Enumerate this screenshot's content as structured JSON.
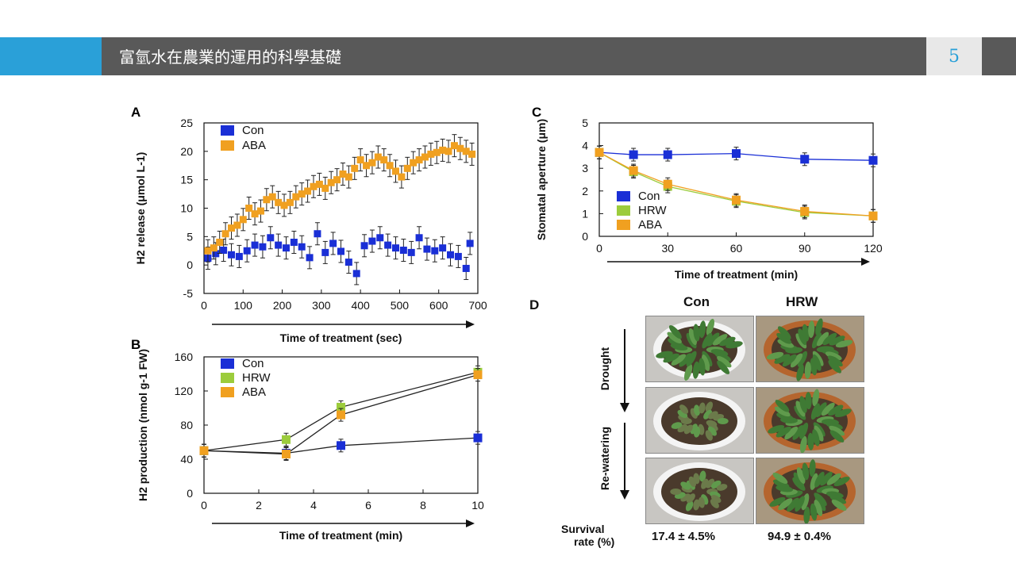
{
  "slide": {
    "title": "富氫水在農業的運用的科學基礎",
    "page_number": "5"
  },
  "chart_data": [
    {
      "panel": "A",
      "type": "scatter",
      "xlabel": "Time of treatment (sec)",
      "ylabel": "H2 release (μmol L-1)",
      "xlim": [
        0,
        700
      ],
      "ylim": [
        -5,
        25
      ],
      "xticks": [
        "0",
        "100",
        "200",
        "300",
        "400",
        "500",
        "600",
        "700"
      ],
      "yticks": [
        "25",
        "20",
        "15",
        "10",
        "5",
        "0",
        "-5"
      ],
      "legend_position": "top-left",
      "series": [
        {
          "name": "Con",
          "color": "#1a2fd6",
          "x": [
            10,
            30,
            50,
            70,
            90,
            110,
            130,
            150,
            170,
            190,
            210,
            230,
            250,
            270,
            290,
            310,
            330,
            350,
            370,
            390,
            410,
            430,
            450,
            470,
            490,
            510,
            530,
            550,
            570,
            590,
            610,
            630,
            650,
            670,
            680
          ],
          "y": [
            1.2,
            2.0,
            2.6,
            1.8,
            1.5,
            2.5,
            3.5,
            3.2,
            4.8,
            3.5,
            3.0,
            4.0,
            3.2,
            1.3,
            5.5,
            2.2,
            3.8,
            2.4,
            0.5,
            -1.5,
            3.4,
            4.2,
            4.8,
            3.5,
            3.0,
            2.6,
            2.2,
            4.8,
            2.8,
            2.5,
            3.0,
            1.8,
            1.5,
            -0.6,
            3.8
          ]
        },
        {
          "name": "ABA",
          "color": "#f0a020",
          "x": [
            10,
            25,
            40,
            55,
            70,
            85,
            100,
            115,
            130,
            145,
            160,
            175,
            190,
            205,
            220,
            235,
            250,
            265,
            280,
            295,
            310,
            325,
            340,
            355,
            370,
            385,
            400,
            415,
            430,
            445,
            460,
            475,
            490,
            505,
            520,
            535,
            550,
            565,
            580,
            595,
            610,
            625,
            640,
            655,
            670,
            685
          ],
          "y": [
            2.5,
            3.0,
            4.0,
            5.5,
            6.5,
            7.0,
            8.0,
            10.0,
            9.0,
            9.5,
            11.5,
            12.0,
            11.0,
            10.5,
            11.0,
            12.0,
            12.5,
            13.0,
            13.8,
            14.2,
            13.5,
            14.5,
            15.0,
            16.0,
            15.5,
            17.0,
            18.5,
            17.5,
            18.0,
            19.0,
            18.5,
            17.5,
            16.5,
            15.5,
            17.0,
            18.0,
            18.5,
            19.0,
            19.5,
            19.8,
            20.2,
            20.0,
            21.0,
            20.5,
            20.0,
            19.5
          ]
        }
      ]
    },
    {
      "panel": "B",
      "type": "line",
      "xlabel": "Time of treatment (min)",
      "ylabel": "H2 production (nmol g-1 FW)",
      "xlim": [
        0,
        10
      ],
      "ylim": [
        0,
        160
      ],
      "xticks": [
        "0",
        "2",
        "4",
        "6",
        "8",
        "10"
      ],
      "yticks": [
        "160",
        "120",
        "80",
        "40",
        "0"
      ],
      "legend_position": "top-left",
      "series": [
        {
          "name": "Con",
          "color": "#1a2fd6",
          "x": [
            0,
            3,
            5,
            10
          ],
          "y": [
            50,
            47,
            56,
            65
          ]
        },
        {
          "name": "HRW",
          "color": "#9ccc3c",
          "x": [
            0,
            3,
            5,
            10
          ],
          "y": [
            50,
            63,
            101,
            142
          ]
        },
        {
          "name": "ABA",
          "color": "#f0a020",
          "x": [
            0,
            3,
            5,
            10
          ],
          "y": [
            50,
            46,
            92,
            139
          ]
        }
      ]
    },
    {
      "panel": "C",
      "type": "line",
      "xlabel": "Time of treatment (min)",
      "ylabel": "Stomatal aperture (μm)",
      "xlim": [
        0,
        120
      ],
      "ylim": [
        0,
        5
      ],
      "xticks": [
        "0",
        "30",
        "60",
        "90",
        "120"
      ],
      "yticks": [
        "5",
        "4",
        "3",
        "2",
        "1",
        "0"
      ],
      "legend_position": "bottom-left",
      "series": [
        {
          "name": "Con",
          "color": "#1a2fd6",
          "x": [
            0,
            15,
            30,
            60,
            90,
            120
          ],
          "y": [
            3.7,
            3.6,
            3.6,
            3.65,
            3.4,
            3.35
          ]
        },
        {
          "name": "HRW",
          "color": "#9ccc3c",
          "x": [
            0,
            15,
            30,
            60,
            90,
            120
          ],
          "y": [
            3.7,
            2.85,
            2.2,
            1.55,
            1.05,
            0.9
          ]
        },
        {
          "name": "ABA",
          "color": "#f0a020",
          "x": [
            0,
            15,
            30,
            60,
            90,
            120
          ],
          "y": [
            3.7,
            2.9,
            2.3,
            1.6,
            1.1,
            0.9
          ]
        }
      ]
    }
  ],
  "panel_d": {
    "letter": "D",
    "col_con": "Con",
    "col_hrw": "HRW",
    "row_drought": "Drought",
    "row_rewatering": "Re-watering",
    "survival_label_1": "Survival",
    "survival_label_2": "rate (%)",
    "survival_con": "17.4 ± 4.5%",
    "survival_hrw": "94.9 ± 0.4%"
  },
  "panel_letters": {
    "a": "A",
    "b": "B",
    "c": "C"
  }
}
